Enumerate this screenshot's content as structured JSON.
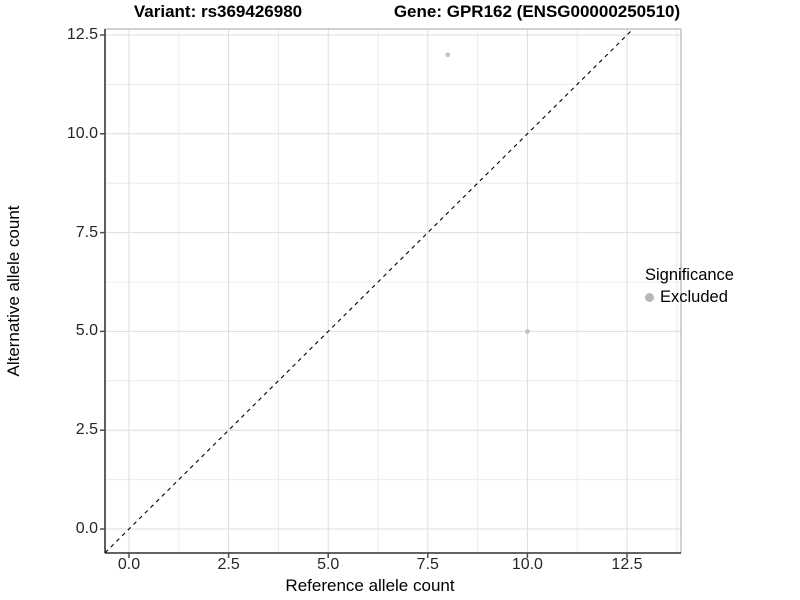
{
  "title": {
    "variant": "Variant: rs369426980",
    "gene": "Gene: GPR162 (ENSG00000250510)"
  },
  "axes": {
    "x": {
      "label": "Reference allele count",
      "tick_labels": [
        "0.0",
        "2.5",
        "5.0",
        "7.5",
        "10.0",
        "12.5"
      ]
    },
    "y": {
      "label": "Alternative allele count",
      "tick_labels": [
        "0.0",
        "2.5",
        "5.0",
        "7.5",
        "10.0",
        "12.5"
      ]
    }
  },
  "legend": {
    "title": "Significance",
    "items": [
      {
        "label": "Excluded",
        "color": "#b8b8b8"
      }
    ]
  },
  "chart_data": {
    "type": "scatter",
    "title": "Variant: rs369426980    Gene: GPR162 (ENSG00000250510)",
    "xlabel": "Reference allele count",
    "ylabel": "Alternative allele count",
    "x_ticks": [
      0,
      2.5,
      5,
      7.5,
      10,
      12.5
    ],
    "y_ticks": [
      0,
      2.5,
      5,
      7.5,
      10,
      12.5
    ],
    "xlim": [
      -0.6,
      13.88
    ],
    "ylim": [
      -0.61,
      12.65
    ],
    "grid": true,
    "legend_position": "right",
    "series": [
      {
        "name": "Excluded",
        "color": "#c2c2c2",
        "points": [
          {
            "x": 8,
            "y": 12
          },
          {
            "x": 10,
            "y": 5
          }
        ]
      }
    ],
    "reference_line": {
      "style": "dashed",
      "equation": "y = x",
      "color": "#000000"
    }
  },
  "colors": {
    "background": "#ffffff",
    "grid_major": "#dedede",
    "grid_minor": "#ececec",
    "axis_line_dark": "#4d4d4d",
    "panel_border_light": "#a6a6a6",
    "point": "#c2c2c2",
    "text": "#262626"
  }
}
